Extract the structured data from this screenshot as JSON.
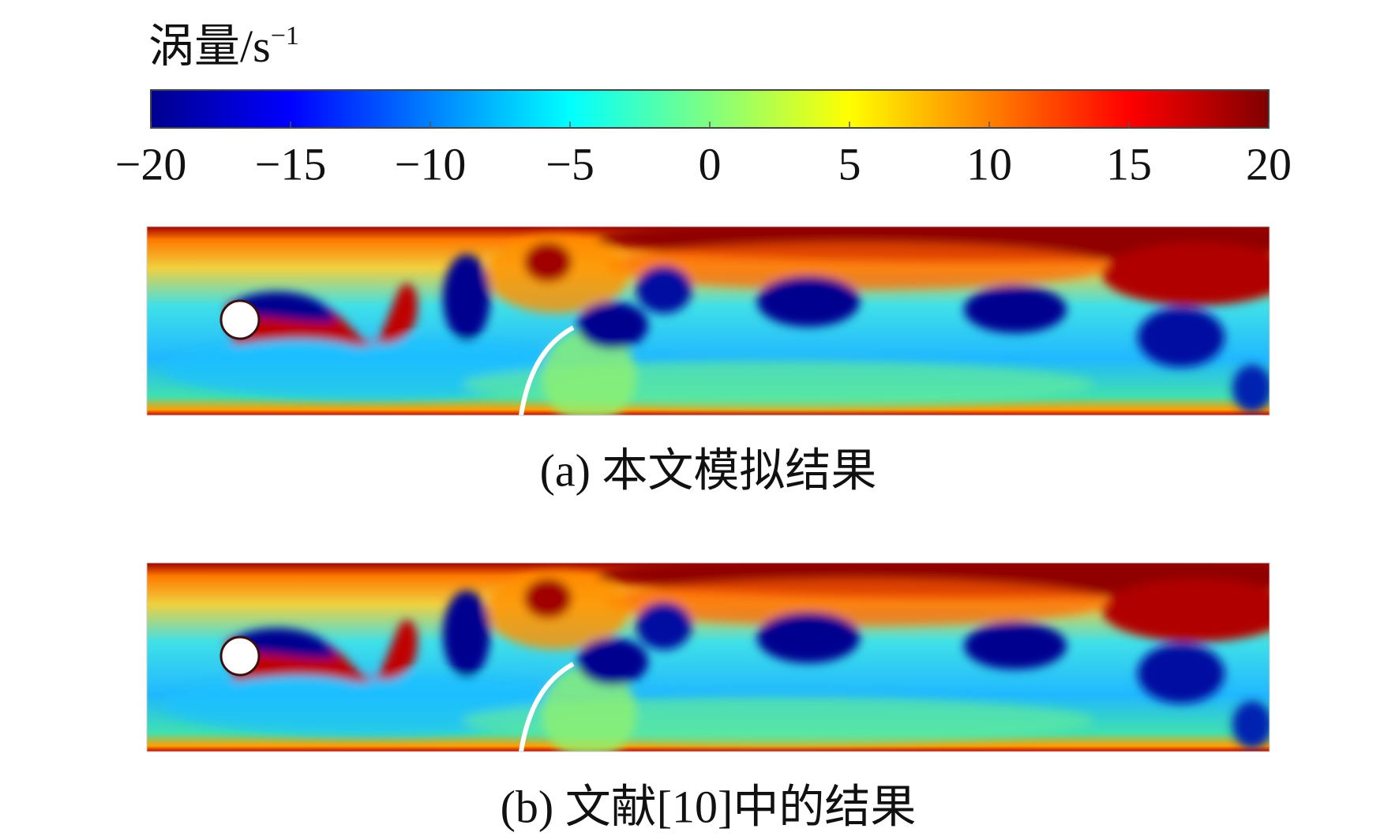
{
  "colorbar": {
    "title": "涡量/s",
    "title_superscript": "−1",
    "range": [
      -20,
      20
    ],
    "colors": [
      "#00008f",
      "#0000ff",
      "#0080ff",
      "#00ffff",
      "#80ff80",
      "#ffff00",
      "#ff8000",
      "#ff0000",
      "#800000"
    ],
    "ticks": [
      {
        "value": -20,
        "label": "−20"
      },
      {
        "value": -15,
        "label": "−15"
      },
      {
        "value": -10,
        "label": "−10"
      },
      {
        "value": -5,
        "label": "−5"
      },
      0,
      5,
      10,
      15,
      20
    ]
  },
  "panels": [
    {
      "caption": "(a) 本文模拟结果"
    },
    {
      "caption": "(b) 文献[10]中的结果"
    }
  ]
}
